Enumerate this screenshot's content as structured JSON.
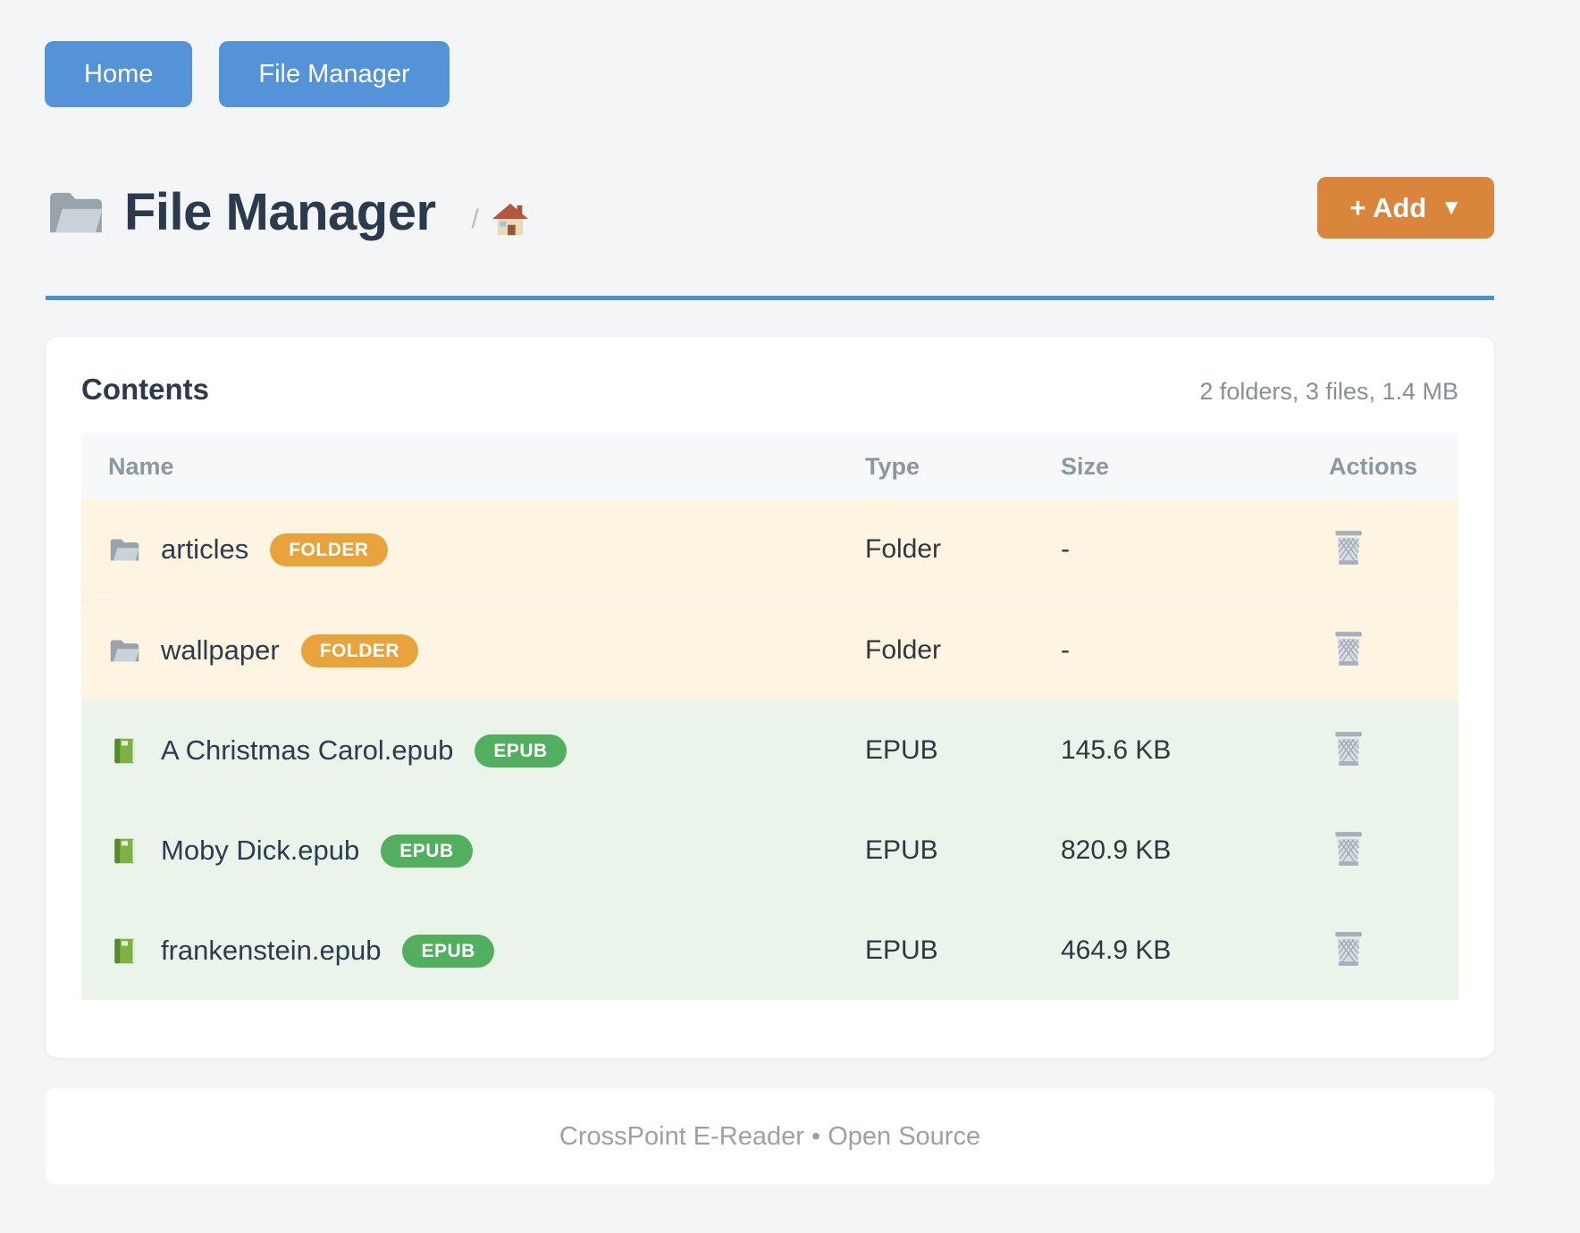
{
  "nav": {
    "buttons": [
      {
        "label": "Home"
      },
      {
        "label": "File Manager"
      }
    ]
  },
  "header": {
    "title": "File Manager",
    "breadcrumb_separator": "/",
    "add_button": {
      "label": "+ Add",
      "caret": "▼"
    }
  },
  "contents": {
    "heading": "Contents",
    "summary": "2 folders, 3 files, 1.4 MB",
    "table": {
      "columns": [
        "Name",
        "Type",
        "Size",
        "Actions"
      ],
      "rows": [
        {
          "name": "articles",
          "badge": "FOLDER",
          "kind": "folder",
          "type": "Folder",
          "size": "-"
        },
        {
          "name": "wallpaper",
          "badge": "FOLDER",
          "kind": "folder",
          "type": "Folder",
          "size": "-"
        },
        {
          "name": "A Christmas Carol.epub",
          "badge": "EPUB",
          "kind": "epub",
          "type": "EPUB",
          "size": "145.6 KB"
        },
        {
          "name": "Moby Dick.epub",
          "badge": "EPUB",
          "kind": "epub",
          "type": "EPUB",
          "size": "820.9 KB"
        },
        {
          "name": "frankenstein.epub",
          "badge": "EPUB",
          "kind": "epub",
          "type": "EPUB",
          "size": "464.9 KB"
        }
      ]
    }
  },
  "footer": {
    "text": "CrossPoint E-Reader • Open Source"
  },
  "icons": {
    "page_title": "folder-icon",
    "breadcrumb": "house-icon",
    "folder_row": "folder-icon",
    "epub_row": "green-book-icon",
    "actions": "wastebasket-icon"
  },
  "colors": {
    "nav_button_blue": "#5593d8",
    "title_rule_blue": "#4a90d5",
    "add_button_orange": "#d9853b",
    "badge_folder_orange": "#e8a33c",
    "badge_epub_green": "#53af60",
    "row_folder_bg": "#fdf5e1",
    "row_epub_bg": "#eaf4eb",
    "header_text": "#2c3a4d",
    "muted_text": "#878f98"
  }
}
